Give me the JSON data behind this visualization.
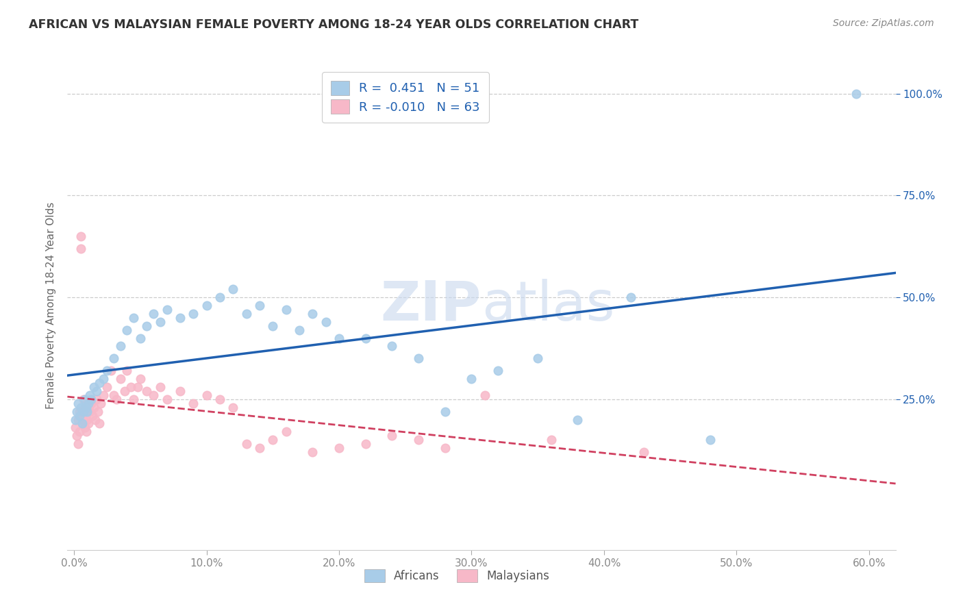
{
  "title": "AFRICAN VS MALAYSIAN FEMALE POVERTY AMONG 18-24 YEAR OLDS CORRELATION CHART",
  "source": "Source: ZipAtlas.com",
  "xlabel_ticks": [
    "0.0%",
    "10.0%",
    "20.0%",
    "30.0%",
    "40.0%",
    "50.0%",
    "60.0%"
  ],
  "xlabel_vals": [
    0.0,
    0.1,
    0.2,
    0.3,
    0.4,
    0.5,
    0.6
  ],
  "ylabel": "Female Poverty Among 18-24 Year Olds",
  "ylabel_ticks": [
    "25.0%",
    "50.0%",
    "75.0%",
    "100.0%"
  ],
  "ylabel_vals": [
    0.25,
    0.5,
    0.75,
    1.0
  ],
  "xlim": [
    -0.005,
    0.62
  ],
  "ylim": [
    -0.12,
    1.08
  ],
  "african_R": 0.451,
  "african_N": 51,
  "malaysian_R": -0.01,
  "malaysian_N": 63,
  "african_color": "#a8cce8",
  "malaysian_color": "#f7b8c8",
  "african_line_color": "#2060b0",
  "malaysian_line_color": "#d04060",
  "watermark_color": "#c8d8ee",
  "background_color": "#ffffff",
  "african_x": [
    0.001,
    0.002,
    0.003,
    0.004,
    0.005,
    0.006,
    0.007,
    0.008,
    0.009,
    0.01,
    0.011,
    0.012,
    0.013,
    0.015,
    0.017,
    0.019,
    0.022,
    0.025,
    0.03,
    0.035,
    0.04,
    0.045,
    0.05,
    0.055,
    0.06,
    0.065,
    0.07,
    0.08,
    0.09,
    0.1,
    0.11,
    0.12,
    0.13,
    0.14,
    0.15,
    0.16,
    0.17,
    0.18,
    0.19,
    0.2,
    0.22,
    0.24,
    0.26,
    0.28,
    0.3,
    0.32,
    0.35,
    0.38,
    0.42,
    0.48,
    0.59
  ],
  "african_y": [
    0.2,
    0.22,
    0.24,
    0.21,
    0.23,
    0.19,
    0.22,
    0.25,
    0.23,
    0.22,
    0.24,
    0.26,
    0.25,
    0.28,
    0.27,
    0.29,
    0.3,
    0.32,
    0.35,
    0.38,
    0.42,
    0.45,
    0.4,
    0.43,
    0.46,
    0.44,
    0.47,
    0.45,
    0.46,
    0.48,
    0.5,
    0.52,
    0.46,
    0.48,
    0.43,
    0.47,
    0.42,
    0.46,
    0.44,
    0.4,
    0.4,
    0.38,
    0.35,
    0.22,
    0.3,
    0.32,
    0.35,
    0.2,
    0.5,
    0.15,
    1.0
  ],
  "malaysian_x": [
    0.001,
    0.002,
    0.003,
    0.003,
    0.004,
    0.004,
    0.005,
    0.005,
    0.006,
    0.006,
    0.007,
    0.007,
    0.008,
    0.008,
    0.009,
    0.009,
    0.01,
    0.01,
    0.011,
    0.011,
    0.012,
    0.013,
    0.014,
    0.015,
    0.016,
    0.017,
    0.018,
    0.019,
    0.02,
    0.022,
    0.025,
    0.028,
    0.03,
    0.032,
    0.035,
    0.038,
    0.04,
    0.043,
    0.045,
    0.048,
    0.05,
    0.055,
    0.06,
    0.065,
    0.07,
    0.08,
    0.09,
    0.1,
    0.11,
    0.12,
    0.13,
    0.14,
    0.15,
    0.16,
    0.18,
    0.2,
    0.22,
    0.24,
    0.26,
    0.28,
    0.31,
    0.36,
    0.43
  ],
  "malaysian_y": [
    0.18,
    0.16,
    0.14,
    0.2,
    0.17,
    0.22,
    0.65,
    0.62,
    0.19,
    0.22,
    0.25,
    0.2,
    0.23,
    0.18,
    0.22,
    0.17,
    0.24,
    0.2,
    0.23,
    0.19,
    0.22,
    0.24,
    0.21,
    0.23,
    0.2,
    0.25,
    0.22,
    0.19,
    0.24,
    0.26,
    0.28,
    0.32,
    0.26,
    0.25,
    0.3,
    0.27,
    0.32,
    0.28,
    0.25,
    0.28,
    0.3,
    0.27,
    0.26,
    0.28,
    0.25,
    0.27,
    0.24,
    0.26,
    0.25,
    0.23,
    0.14,
    0.13,
    0.15,
    0.17,
    0.12,
    0.13,
    0.14,
    0.16,
    0.15,
    0.13,
    0.26,
    0.15,
    0.12
  ],
  "gridline_color": "#cccccc",
  "tick_color": "#888888",
  "title_color": "#333333",
  "source_color": "#888888",
  "ylabel_color": "#666666"
}
